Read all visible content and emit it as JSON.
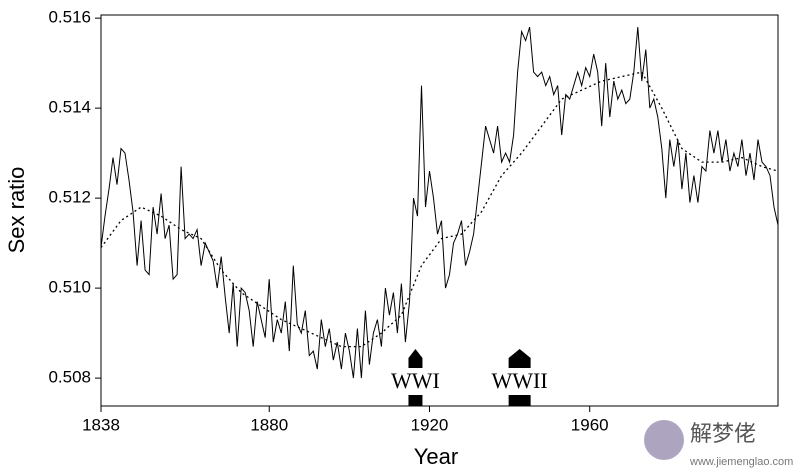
{
  "chart_data": {
    "type": "line",
    "x_label": "Year",
    "y_label": "Sex ratio",
    "xlim": [
      1838,
      2007
    ],
    "ylim": [
      0.50738,
      0.51607
    ],
    "xticks": [
      1838,
      1880,
      1920,
      1960
    ],
    "yticks": [
      0.508,
      {
        "value": 0.51,
        "label": "0.510"
      },
      0.512,
      0.514,
      0.516
    ],
    "series": [
      {
        "style": "solid",
        "color": "#000000",
        "x": [
          1838,
          1839,
          1840,
          1841,
          1842,
          1843,
          1844,
          1845,
          1846,
          1847,
          1848,
          1849,
          1850,
          1851,
          1852,
          1853,
          1854,
          1855,
          1856,
          1857,
          1858,
          1859,
          1860,
          1861,
          1862,
          1863,
          1864,
          1865,
          1866,
          1867,
          1868,
          1869,
          1870,
          1871,
          1872,
          1873,
          1874,
          1875,
          1876,
          1877,
          1878,
          1879,
          1880,
          1881,
          1882,
          1883,
          1884,
          1885,
          1886,
          1887,
          1888,
          1889,
          1890,
          1891,
          1892,
          1893,
          1894,
          1895,
          1896,
          1897,
          1898,
          1899,
          1900,
          1901,
          1902,
          1903,
          1904,
          1905,
          1906,
          1907,
          1908,
          1909,
          1910,
          1911,
          1912,
          1913,
          1914,
          1915,
          1916,
          1917,
          1918,
          1919,
          1920,
          1921,
          1922,
          1923,
          1924,
          1925,
          1926,
          1927,
          1928,
          1929,
          1930,
          1931,
          1932,
          1933,
          1934,
          1935,
          1936,
          1937,
          1938,
          1939,
          1940,
          1941,
          1942,
          1943,
          1944,
          1945,
          1946,
          1947,
          1948,
          1949,
          1950,
          1951,
          1952,
          1953,
          1954,
          1955,
          1956,
          1957,
          1958,
          1959,
          1960,
          1961,
          1962,
          1963,
          1964,
          1965,
          1966,
          1967,
          1968,
          1969,
          1970,
          1971,
          1972,
          1973,
          1974,
          1975,
          1976,
          1977,
          1978,
          1979,
          1980,
          1981,
          1982,
          1983,
          1984,
          1985,
          1986,
          1987,
          1988,
          1989,
          1990,
          1991,
          1992,
          1993,
          1994,
          1995,
          1996,
          1997,
          1998,
          1999,
          2000,
          2001,
          2002,
          2003,
          2004,
          2005,
          2006,
          2007
        ],
        "values": [
          0.5109,
          0.5116,
          0.5122,
          0.5129,
          0.5123,
          0.5131,
          0.513,
          0.5124,
          0.5117,
          0.5105,
          0.5115,
          0.5104,
          0.5103,
          0.5118,
          0.5112,
          0.5121,
          0.5111,
          0.5114,
          0.5102,
          0.5103,
          0.5127,
          0.5111,
          0.5112,
          0.5111,
          0.5113,
          0.5105,
          0.511,
          0.5108,
          0.5106,
          0.51,
          0.5107,
          0.5098,
          0.509,
          0.5101,
          0.5087,
          0.51,
          0.5099,
          0.5095,
          0.5087,
          0.5097,
          0.5093,
          0.5089,
          0.5102,
          0.5088,
          0.5093,
          0.509,
          0.5097,
          0.5086,
          0.5105,
          0.5092,
          0.509,
          0.5095,
          0.5085,
          0.5086,
          0.5082,
          0.5093,
          0.5087,
          0.5091,
          0.5084,
          0.5088,
          0.5082,
          0.509,
          0.5086,
          0.508,
          0.5091,
          0.508,
          0.5095,
          0.5083,
          0.509,
          0.5093,
          0.5087,
          0.51,
          0.5094,
          0.5099,
          0.509,
          0.5101,
          0.5088,
          0.5097,
          0.512,
          0.5116,
          0.5145,
          0.5118,
          0.5126,
          0.512,
          0.5112,
          0.5115,
          0.51,
          0.5103,
          0.511,
          0.5112,
          0.5115,
          0.5105,
          0.5108,
          0.5112,
          0.512,
          0.5128,
          0.5136,
          0.5133,
          0.513,
          0.5136,
          0.5128,
          0.513,
          0.5128,
          0.5134,
          0.5148,
          0.5157,
          0.5155,
          0.5158,
          0.5148,
          0.5147,
          0.5148,
          0.5145,
          0.5147,
          0.5143,
          0.5145,
          0.5134,
          0.5143,
          0.5142,
          0.5145,
          0.5148,
          0.5145,
          0.5149,
          0.5147,
          0.5152,
          0.5148,
          0.5136,
          0.515,
          0.5138,
          0.5146,
          0.5142,
          0.5144,
          0.5141,
          0.5142,
          0.5148,
          0.5158,
          0.5146,
          0.5153,
          0.514,
          0.5142,
          0.5138,
          0.5131,
          0.512,
          0.5133,
          0.5127,
          0.5133,
          0.5122,
          0.513,
          0.5119,
          0.5125,
          0.5119,
          0.5127,
          0.5126,
          0.5135,
          0.513,
          0.5135,
          0.5128,
          0.5133,
          0.5126,
          0.513,
          0.5127,
          0.5133,
          0.5125,
          0.513,
          0.5124,
          0.5133,
          0.5128,
          0.5127,
          0.5125,
          0.5118,
          0.5114
        ]
      },
      {
        "style": "dotted",
        "color": "#000000",
        "x": [
          1838,
          1843,
          1848,
          1853,
          1858,
          1863,
          1868,
          1873,
          1878,
          1883,
          1888,
          1893,
          1898,
          1903,
          1908,
          1913,
          1918,
          1923,
          1928,
          1933,
          1938,
          1943,
          1948,
          1953,
          1958,
          1963,
          1968,
          1973,
          1978,
          1983,
          1988,
          1993,
          1998,
          2003,
          2007
        ],
        "values": [
          0.5109,
          0.5115,
          0.5118,
          0.5116,
          0.5113,
          0.5111,
          0.5104,
          0.5099,
          0.5096,
          0.5093,
          0.5091,
          0.5089,
          0.5087,
          0.5087,
          0.509,
          0.5094,
          0.5105,
          0.5111,
          0.5112,
          0.5117,
          0.5125,
          0.513,
          0.5136,
          0.5142,
          0.5144,
          0.5146,
          0.5147,
          0.5148,
          0.514,
          0.5131,
          0.5128,
          0.5128,
          0.5129,
          0.5127,
          0.5126
        ]
      }
    ],
    "annotations": [
      {
        "text": "WWI",
        "x": 1916.5
      },
      {
        "text": "WWII",
        "x": 1942.5
      }
    ]
  },
  "watermark": {
    "name": "解梦佬",
    "url": "www.jiemenglao.com"
  }
}
